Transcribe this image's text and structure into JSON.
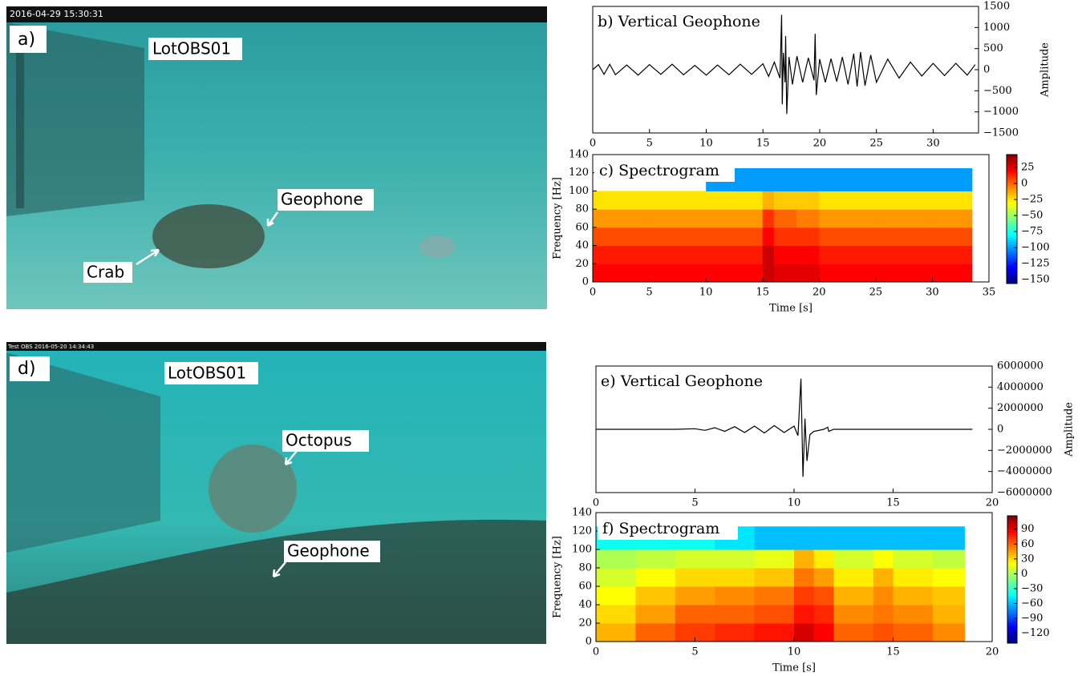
{
  "photos": [
    {
      "timestamp": "2016-04-29 15:30:31",
      "panel": "a)",
      "station": "LotOBS01",
      "labels": [
        "Geophone",
        "Crab"
      ]
    },
    {
      "timestamp": "Test OBS 2016-05-20 14:34:43",
      "panel": "d)",
      "station": "LotOBS01",
      "labels": [
        "Octopus",
        "Geophone"
      ]
    }
  ],
  "chart_data": [
    {
      "type": "line",
      "title": "b) Vertical Geophone",
      "ylabel": "Amplitude",
      "color": "#000000",
      "x": [
        0,
        0.5,
        1,
        1.5,
        2,
        3,
        4,
        5,
        6,
        7,
        8,
        9,
        10,
        11,
        12,
        13,
        14,
        15,
        15.5,
        16,
        16.5,
        16.65,
        16.7,
        16.8,
        16.95,
        17.0,
        17.1,
        17.3,
        17.6,
        18,
        18.5,
        19,
        19.5,
        19.6,
        19.7,
        20,
        20.5,
        21,
        21.5,
        22,
        22.5,
        23,
        23.3,
        23.6,
        24,
        24.5,
        25,
        26,
        27,
        28,
        29,
        30,
        31,
        32,
        33,
        33.7
      ],
      "values": [
        0,
        120,
        -110,
        130,
        -120,
        110,
        -130,
        120,
        -110,
        130,
        -120,
        100,
        -130,
        110,
        -120,
        130,
        -110,
        140,
        -160,
        180,
        -200,
        1300,
        -820,
        400,
        -300,
        800,
        -1050,
        300,
        -350,
        320,
        -300,
        280,
        -250,
        850,
        -600,
        250,
        -300,
        260,
        -280,
        300,
        -350,
        380,
        -400,
        420,
        -380,
        350,
        -300,
        250,
        -200,
        180,
        -150,
        150,
        -140,
        150,
        -130,
        120
      ],
      "xlim": [
        0,
        34
      ],
      "xticks": [
        0,
        5,
        10,
        15,
        20,
        25,
        30
      ],
      "ylim": [
        -1500,
        1500
      ],
      "yticks": [
        1500,
        1000,
        500,
        0,
        {
          "value": -500,
          "label": "−500"
        },
        {
          "value": -1000,
          "label": "−1000"
        },
        {
          "value": -1500,
          "label": "−1500"
        }
      ]
    },
    {
      "type": "heatmap",
      "title": "c) Spectrogram",
      "xlabel": "Time [s]",
      "ylabel": "Frequency [Hz]",
      "x_edges": [
        0,
        5,
        10,
        15,
        16,
        18,
        20,
        25,
        30,
        33.5
      ],
      "y_edges": [
        0,
        20,
        40,
        60,
        80,
        100,
        125
      ],
      "z": [
        [
          20,
          20,
          20,
          30,
          25,
          25,
          20,
          20,
          20
        ],
        [
          15,
          15,
          15,
          30,
          20,
          20,
          15,
          15,
          15
        ],
        [
          5,
          5,
          5,
          20,
          10,
          10,
          5,
          5,
          5
        ],
        [
          -10,
          -10,
          -10,
          10,
          0,
          -5,
          -10,
          -10,
          -10
        ],
        [
          -25,
          -25,
          -25,
          -15,
          -20,
          -20,
          -25,
          -25,
          -25
        ],
        [
          null,
          null,
          -100,
          -100,
          -100,
          -100,
          -100,
          -100,
          -100
        ]
      ],
      "xlim": [
        0,
        35
      ],
      "xticks": [
        0,
        5,
        10,
        15,
        20,
        25,
        30,
        35
      ],
      "ylim": [
        0,
        140
      ],
      "yticks": [
        0,
        20,
        40,
        60,
        80,
        100,
        120,
        140
      ],
      "zlim": [
        -156,
        45
      ],
      "colorbar_ticks": [
        25,
        0,
        {
          "value": -25,
          "label": "−25"
        },
        {
          "value": -50,
          "label": "−50"
        },
        {
          "value": -75,
          "label": "−75"
        },
        {
          "value": -100,
          "label": "−100"
        },
        {
          "value": -125,
          "label": "−125"
        },
        {
          "value": -150,
          "label": "−150"
        }
      ]
    },
    {
      "type": "line",
      "title": "e) Vertical Geophone",
      "ylabel": "Amplitude",
      "color": "#000000",
      "x": [
        0,
        4,
        5,
        5.5,
        6,
        6.5,
        7,
        7.5,
        8,
        8.5,
        9,
        9.5,
        10,
        10.2,
        10.35,
        10.45,
        10.55,
        10.65,
        10.8,
        11,
        11.5,
        11.7,
        11.75,
        12,
        19
      ],
      "values": [
        0,
        0,
        50000,
        -100000,
        150000,
        -200000,
        250000,
        -300000,
        300000,
        -350000,
        350000,
        -300000,
        300000,
        -600000,
        4800000,
        -4500000,
        1000000,
        -3000000,
        -500000,
        -200000,
        0,
        200000,
        -200000,
        0,
        0
      ],
      "xlim": [
        0,
        20
      ],
      "xticks": [
        0,
        5,
        10,
        15,
        20
      ],
      "ylim": [
        -6000000,
        6000000
      ],
      "yticks": [
        6000000,
        4000000,
        2000000,
        0,
        {
          "value": -2000000,
          "label": "−2000000"
        },
        {
          "value": -4000000,
          "label": "−4000000"
        },
        {
          "value": -6000000,
          "label": "−6000000"
        }
      ]
    },
    {
      "type": "heatmap",
      "title": "f) Spectrogram",
      "xlabel": "Time [s]",
      "ylabel": "Frequency [Hz]",
      "x_edges": [
        0,
        2,
        4,
        6,
        8,
        10,
        11,
        12,
        14,
        15,
        17,
        18.6
      ],
      "y_edges": [
        0,
        20,
        40,
        60,
        80,
        100,
        125
      ],
      "z": [
        [
          40,
          60,
          70,
          75,
          80,
          95,
          85,
          60,
          65,
          60,
          50
        ],
        [
          30,
          45,
          60,
          60,
          65,
          80,
          75,
          50,
          55,
          50,
          40
        ],
        [
          20,
          35,
          45,
          50,
          55,
          70,
          65,
          40,
          50,
          40,
          35
        ],
        [
          10,
          20,
          30,
          30,
          35,
          55,
          45,
          25,
          40,
          25,
          20
        ],
        [
          0,
          5,
          10,
          10,
          15,
          40,
          25,
          10,
          20,
          10,
          5
        ],
        [
          -40,
          -40,
          -40,
          -50,
          -60,
          -60,
          -60,
          -60,
          -60,
          -60,
          -60
        ]
      ],
      "xlim": [
        0,
        20
      ],
      "xticks": [
        0,
        5,
        10,
        15,
        20
      ],
      "ylim": [
        0,
        140
      ],
      "yticks": [
        0,
        20,
        40,
        60,
        80,
        100,
        120,
        140
      ],
      "zlim": [
        -140,
        117
      ],
      "colorbar_ticks": [
        90,
        60,
        30,
        0,
        {
          "value": -30,
          "label": "−30"
        },
        {
          "value": -60,
          "label": "−60"
        },
        {
          "value": -90,
          "label": "−90"
        },
        {
          "value": -120,
          "label": "−120"
        }
      ]
    }
  ]
}
